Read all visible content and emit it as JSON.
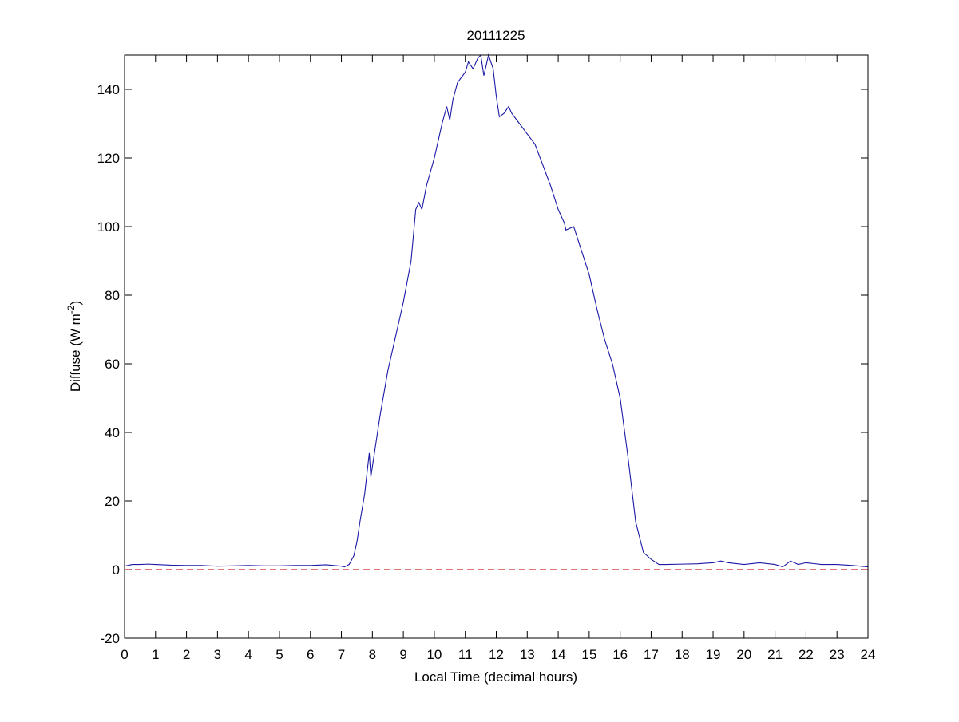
{
  "chart_data": {
    "type": "line",
    "title": "20111225",
    "xlabel": "Local Time (decimal hours)",
    "ylabel": {
      "text": "Diffuse (W m",
      "superscript": "-2",
      "suffix": ")"
    },
    "xlim": [
      0,
      24
    ],
    "ylim": [
      -20,
      150
    ],
    "xticks": [
      0,
      1,
      2,
      3,
      4,
      5,
      6,
      7,
      8,
      9,
      10,
      11,
      12,
      13,
      14,
      15,
      16,
      17,
      18,
      19,
      20,
      21,
      22,
      23,
      24
    ],
    "yticks": [
      -20,
      0,
      20,
      40,
      60,
      80,
      100,
      120,
      140
    ],
    "grid": false,
    "reference_line": {
      "value": 0,
      "color": "#cc2222",
      "style": "dashed"
    },
    "series": [
      {
        "color": "#1a1aa6",
        "x": [
          0,
          0.25,
          0.5,
          0.75,
          1,
          1.5,
          2,
          2.5,
          3,
          3.5,
          4,
          4.5,
          5,
          5.5,
          6,
          6.5,
          7,
          7.1,
          7.25,
          7.4,
          7.5,
          7.6,
          7.75,
          7.9,
          7.95,
          8,
          8.1,
          8.25,
          8.5,
          8.75,
          9,
          9.25,
          9.4,
          9.5,
          9.6,
          9.75,
          10,
          10.25,
          10.4,
          10.5,
          10.6,
          10.75,
          11,
          11.1,
          11.25,
          11.4,
          11.5,
          11.6,
          11.75,
          11.9,
          12,
          12.1,
          12.25,
          12.4,
          12.5,
          12.75,
          13,
          13.25,
          13.5,
          13.75,
          14,
          14.2,
          14.25,
          14.5,
          14.75,
          15,
          15.25,
          15.5,
          15.75,
          16,
          16.25,
          16.5,
          16.75,
          17,
          17.25,
          17.5,
          18,
          18.5,
          19,
          19.25,
          19.5,
          20,
          20.5,
          21,
          21.25,
          21.5,
          21.75,
          22,
          22.5,
          23,
          23.5,
          24
        ],
        "values": [
          1,
          1.5,
          1.5,
          1.6,
          1.5,
          1.3,
          1.2,
          1.2,
          1.0,
          1.1,
          1.2,
          1.1,
          1.1,
          1.2,
          1.2,
          1.4,
          1.0,
          0.8,
          1.5,
          4,
          8,
          14,
          22,
          34,
          27,
          30,
          36,
          45,
          58,
          68,
          78,
          90,
          105,
          107,
          105,
          112,
          120,
          130,
          135,
          131,
          137,
          142,
          145,
          148,
          146,
          149,
          150,
          144,
          150,
          146,
          138,
          132,
          133,
          135,
          133,
          130,
          127,
          124,
          118,
          112,
          105,
          101,
          99,
          100,
          93,
          86,
          76,
          67,
          60,
          50,
          33,
          14,
          5,
          3,
          1.5,
          1.5,
          1.6,
          1.7,
          2,
          2.5,
          2,
          1.5,
          2,
          1.5,
          0.8,
          2.5,
          1.5,
          2,
          1.5,
          1.5,
          1.2,
          0.8
        ]
      }
    ]
  }
}
